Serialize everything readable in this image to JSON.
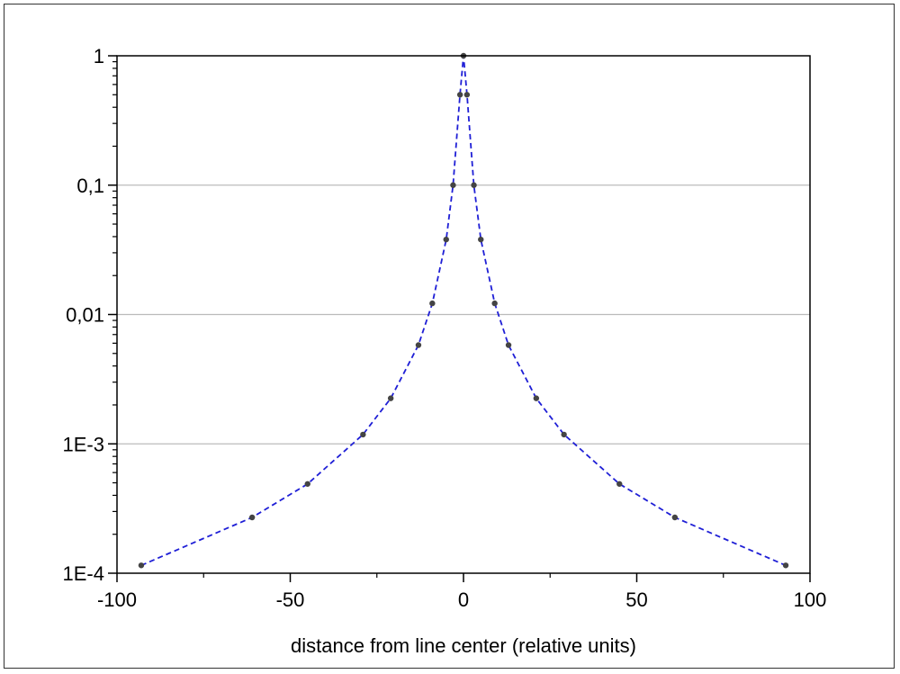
{
  "chart_data": {
    "type": "scatter",
    "xlabel": "distance from line center (relative units)",
    "ylabel": "",
    "xlim": [
      -100,
      100
    ],
    "ylim": [
      0.0001,
      1
    ],
    "yscale": "log",
    "x_ticks": [
      -100,
      -50,
      0,
      50,
      100
    ],
    "x_tick_labels": [
      "-100",
      "-50",
      "0",
      "50",
      "100"
    ],
    "y_ticks": [
      0.0001,
      0.001,
      0.01,
      0.1,
      1
    ],
    "y_tick_labels": [
      "1E-4",
      "1E-3",
      "0,01",
      "0,1",
      "1"
    ],
    "grid": "horizontal",
    "series": [
      {
        "style": "dashed-line-with-markers",
        "line_color": "#1f1fd6",
        "marker_color": "#444444",
        "x": [
          -93,
          -61,
          -45,
          -29,
          -21,
          -13,
          -9,
          -5,
          -3,
          -1,
          0,
          1,
          3,
          5,
          9,
          13,
          21,
          29,
          45,
          61,
          93
        ],
        "y": [
          0.000115,
          0.00027,
          0.00049,
          0.00118,
          0.00225,
          0.0058,
          0.0122,
          0.038,
          0.1,
          0.5,
          1,
          0.5,
          0.1,
          0.038,
          0.0122,
          0.0058,
          0.00225,
          0.00118,
          0.00049,
          0.00027,
          0.000115
        ]
      }
    ]
  }
}
